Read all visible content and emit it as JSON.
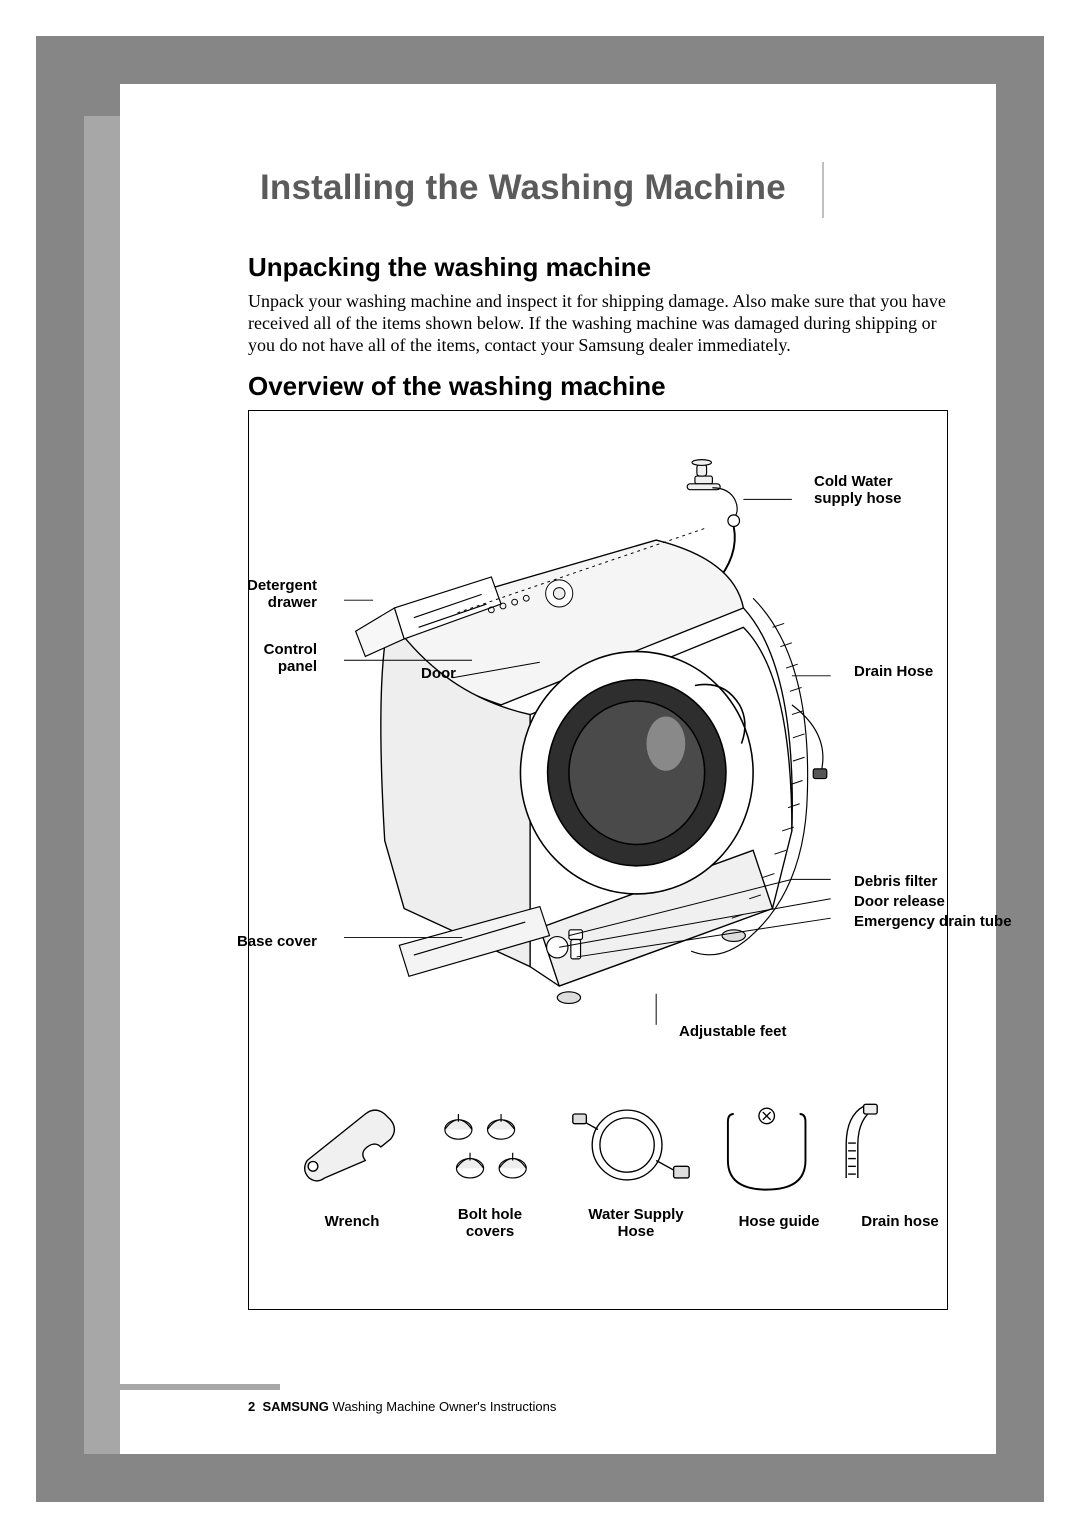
{
  "title": "Installing the Washing Machine",
  "section1_heading": "Unpacking the washing machine",
  "section1_body": "Unpack your washing machine and inspect it for shipping damage. Also make sure that you have received all of the items shown below.  If the washing machine was damaged during shipping or you do not have all of the items, contact your Samsung dealer immediately.",
  "section2_heading": "Overview of the washing machine",
  "labels": {
    "cold_water": "Cold Water\nsupply hose",
    "detergent": "Detergent\ndrawer",
    "control": "Control\npanel",
    "door": "Door",
    "drain_hose_side": "Drain Hose",
    "debris": "Debris filter",
    "door_release": "Door release",
    "emergency": "Emergency drain tube",
    "base_cover": "Base cover",
    "adjustable": "Adjustable feet"
  },
  "accessories": {
    "wrench": "Wrench",
    "bolt": "Bolt hole\ncovers",
    "water": "Water Supply\nHose",
    "guide": "Hose guide",
    "drain": "Drain hose"
  },
  "footer": {
    "page": "2",
    "brand": "SAMSUNG",
    "tail": " Washing Machine Owner's Instructions"
  },
  "colors": {
    "frame": "#868686",
    "tab": "#a7a7a7",
    "title": "#5b5b5b",
    "rule": "#c0c0c0"
  }
}
